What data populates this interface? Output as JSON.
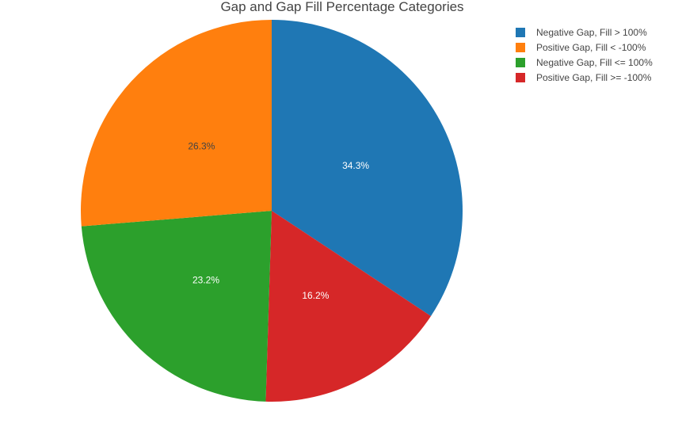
{
  "chart_data": {
    "type": "pie",
    "title": "Gap and Gap Fill Percentage Categories",
    "labels": [
      "Negative Gap, Fill > 100%",
      "Positive Gap, Fill < -100%",
      "Negative Gap, Fill <= 100%",
      "Positive Gap, Fill >= -100%"
    ],
    "values": [
      34.3,
      26.3,
      23.2,
      16.2
    ],
    "value_labels": [
      "34.3%",
      "26.3%",
      "23.2%",
      "16.2%"
    ],
    "slice_order_clockwise": [
      0,
      3,
      2,
      1
    ],
    "colors": [
      "#1f77b4",
      "#ff7f0e",
      "#2ca02c",
      "#d62728"
    ],
    "label_colors": [
      "#ffffff",
      "#444444",
      "#ffffff",
      "#ffffff"
    ],
    "legend_position": "top-right"
  }
}
